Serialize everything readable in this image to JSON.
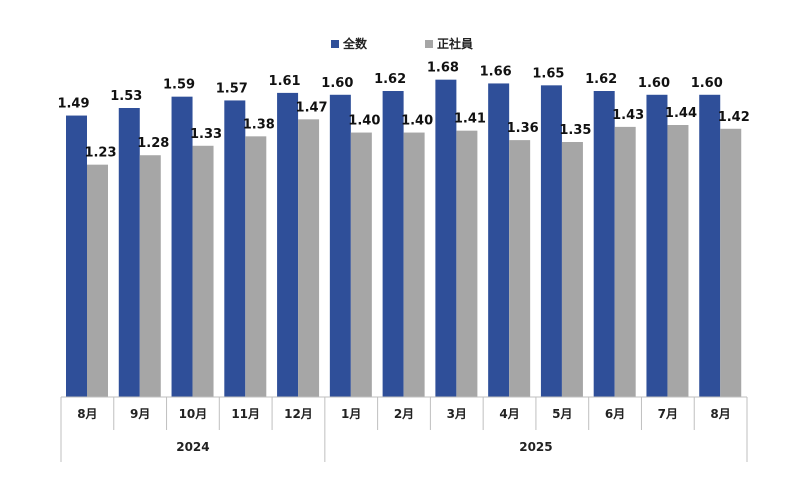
{
  "chart_data": {
    "type": "bar",
    "categories": [
      "8月",
      "9月",
      "10月",
      "11月",
      "12月",
      "1月",
      "2月",
      "3月",
      "4月",
      "5月",
      "6月",
      "7月",
      "8月"
    ],
    "groups": [
      {
        "label": "2024",
        "count": 5
      },
      {
        "label": "2025",
        "count": 8
      }
    ],
    "series": [
      {
        "name": "全数",
        "color": "#2f4f99",
        "values": [
          1.49,
          1.53,
          1.59,
          1.57,
          1.61,
          1.6,
          1.62,
          1.68,
          1.66,
          1.65,
          1.62,
          1.6,
          1.6
        ]
      },
      {
        "name": "正社員",
        "color": "#a6a6a6",
        "values": [
          1.23,
          1.28,
          1.33,
          1.38,
          1.47,
          1.4,
          1.4,
          1.41,
          1.36,
          1.35,
          1.43,
          1.44,
          1.42
        ]
      }
    ],
    "ylim": [
      0,
      1.8
    ],
    "legend_position": "top-center",
    "grid": false,
    "value_format_decimals": 2
  }
}
